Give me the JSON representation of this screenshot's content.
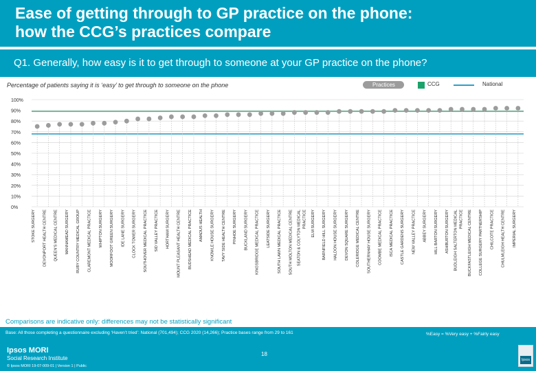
{
  "header": {
    "title_line1": "Ease of getting through to GP practice on the phone:",
    "title_line2": "how the CCG’s practices compare",
    "question": "Q1. Generally, how easy is it to get through to someone at your GP practice on the phone?"
  },
  "subtitle": "Percentage of patients saying it is ‘easy’ to get through to someone on the phone",
  "legend": {
    "practices": "Practices",
    "ccg": "CCG",
    "national": "National"
  },
  "colors": {
    "header_bg": "#009fc0",
    "practice_point": "#9c9c9c",
    "national_line": "#2aa0c8",
    "ccg_line": "#1aa36b",
    "grid": "#d0d0d0"
  },
  "chart_data": {
    "type": "scatter",
    "ylim": [
      0,
      100
    ],
    "yticks": [
      "0%",
      "10%",
      "20%",
      "30%",
      "40%",
      "50%",
      "60%",
      "70%",
      "80%",
      "90%",
      "100%"
    ],
    "categories": [
      "STOKE SURGERY",
      "DEVONPORT HEALTH CENTRE",
      "QUEEN'S MEDICAL CENTRE",
      "MANNAMEAD SURGERY",
      "RUBY COUNTRY MEDICAL GROUP",
      "CLAREMONT MEDICAL PRACTICE",
      "WHIPTON SURGERY",
      "MOORFOOT GREEN SURGERY",
      "IDE LANE SURGERY",
      "CLOCK TOWER SURGERY",
      "SOUTHOVER MEDICAL PRACTICE",
      "SID VALLEY PRACTICE",
      "HORTHAM SURGERY",
      "MOUNT PLEASANT HEALTH CENTRE",
      "BUDSHEAD MEDICAL PRACTICE",
      "AMADUS HEALTH",
      "KNOWLE HOUSE SURGERY",
      "TAVY SIDE HEALTH CENTRE",
      "PINHOE SURGERY",
      "BUCKLAND SURGERY",
      "KINGSBRIDGE MEDICAL PRACTICE",
      "LEATSIDE SURGERY",
      "SOUTH LAWN MEDICAL PRACTICE",
      "SOUTH MOLTON MEDICAL CENTRE",
      "SEATON & COLYTON MEDICAL PRACTICE",
      "ELM SURGERY",
      "BARNFIELD HILL SURGERY",
      "HALDON HOUSE SURGERY",
      "DEVON SQUARE SURGERY",
      "COLERIDGE MEDICAL CENTRE",
      "SOUTHERNHAY HOUSE SURGERY",
      "COOMBE MEDICAL PRACTICE",
      "ISCA MEDICAL PRACTICE",
      "CASTLE GARDENS SURGERY",
      "NEW VALLEY PRACTICE",
      "ABBEY SURGERY",
      "HILL BARTON SURGERY",
      "ASHBURTON SURGERY",
      "BUDLEIGH SALTERTON MEDICAL PRACTICE",
      "BUCKFASTLEIGH MEDICAL CENTRE",
      "COLLEGE SURGERY PARTNERSHIP",
      "CHILCOTE PRACTICE",
      "CHULMLEIGH HEALTH CENTRE",
      "IMPERIAL SURGERY"
    ],
    "values": [
      75,
      76,
      77,
      77,
      77,
      78,
      78,
      79,
      80,
      82,
      82,
      83,
      84,
      84,
      84,
      85,
      85,
      86,
      86,
      86,
      87,
      87,
      87,
      88,
      88,
      88,
      88,
      89,
      89,
      89,
      89,
      89,
      90,
      90,
      90,
      90,
      90,
      91,
      91,
      91,
      91,
      92,
      92,
      92
    ],
    "national": 68,
    "ccg": 89
  },
  "footer": {
    "note": "Comparisons are indicative only: differences may not be statistically significant",
    "base": "Base: All those completing a questionnaire excluding ‘Haven’t tried’: National (701,494); CCG 2020 (14,266); Practice bases range from 29 to 161",
    "formula": "%Easy = %Very easy + %Fairly easy",
    "page": "18",
    "logo_line1": "Ipsos MORI",
    "logo_line2": "Social Research Institute",
    "info": "© Ipsos MORI     19-07-009-01 | Version 1 | Public",
    "badge": "Ipsos"
  }
}
